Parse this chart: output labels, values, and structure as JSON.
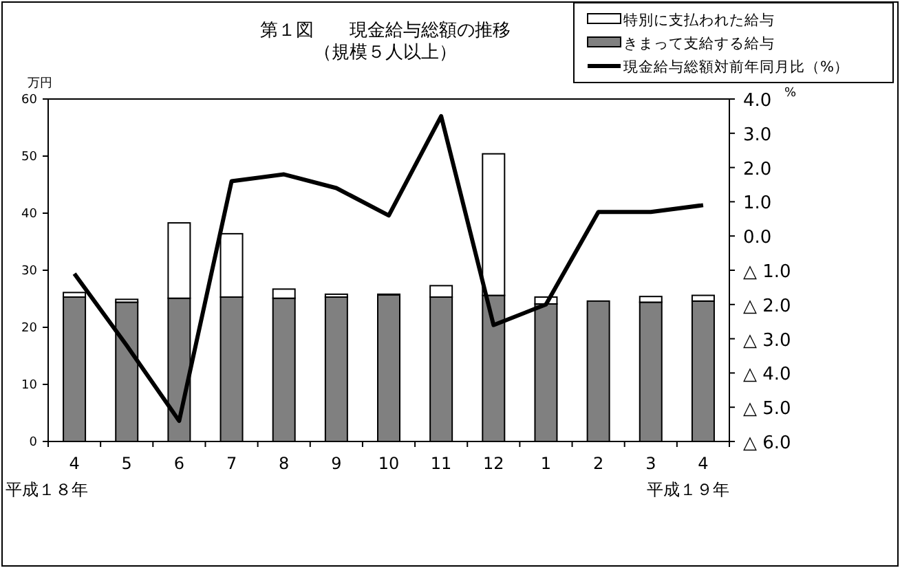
{
  "chart_data": {
    "type": "bar",
    "title": "第１図　　現金給与総額の推移",
    "subtitle": "（規模５人以上）",
    "ylabel": "万円",
    "y2label": "%",
    "categories": [
      "4",
      "5",
      "6",
      "7",
      "8",
      "9",
      "10",
      "11",
      "12",
      "1",
      "2",
      "3",
      "4"
    ],
    "stacked": true,
    "series": [
      {
        "name": "きまって支給する給与",
        "color": "#808080",
        "values": [
          25.3,
          24.4,
          25.1,
          25.3,
          25.1,
          25.3,
          25.7,
          25.3,
          25.6,
          24.1,
          24.6,
          24.4,
          24.6
        ]
      },
      {
        "name": "特別に支払われた給与",
        "color": "#ffffff",
        "values": [
          0.8,
          0.5,
          13.2,
          11.1,
          1.6,
          0.5,
          0.1,
          2.0,
          24.8,
          1.2,
          0,
          1.0,
          1.0
        ]
      },
      {
        "name": "現金給与総額対前年同月比（%）",
        "type": "line",
        "axis": "y2",
        "color": "#000000",
        "values": [
          -1.1,
          -3.2,
          -5.4,
          1.6,
          1.8,
          1.4,
          0.6,
          3.5,
          -2.6,
          -2.0,
          0.7,
          0.7,
          0.9
        ]
      }
    ],
    "ylim": [
      0,
      60
    ],
    "yticks": [
      0,
      10,
      20,
      30,
      40,
      50,
      60
    ],
    "y2lim": [
      -6,
      4
    ],
    "y2ticks": [
      {
        "value": 4,
        "label": "4.0"
      },
      {
        "value": 3,
        "label": "3.0"
      },
      {
        "value": 2,
        "label": "2.0"
      },
      {
        "value": 1,
        "label": "1.0"
      },
      {
        "value": 0,
        "label": "0.0"
      },
      {
        "value": -1,
        "label": "△ 1.0"
      },
      {
        "value": -2,
        "label": "△ 2.0"
      },
      {
        "value": -3,
        "label": "△ 3.0"
      },
      {
        "value": -4,
        "label": "△ 4.0"
      },
      {
        "value": -5,
        "label": "△ 5.0"
      },
      {
        "value": -6,
        "label": "△ 6.0"
      }
    ],
    "annotations": [
      "平成１８年",
      "平成１９年"
    ],
    "legend": "top right",
    "grid": false,
    "marker": "none",
    "line_style": "solid"
  }
}
